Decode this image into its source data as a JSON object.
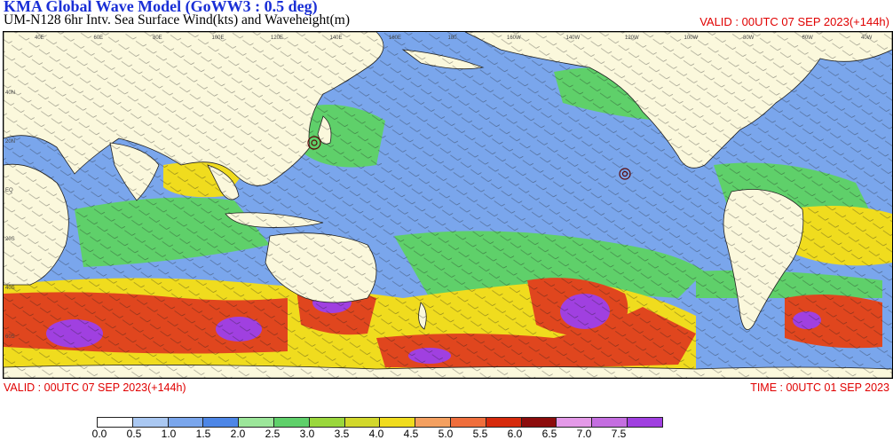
{
  "header": {
    "title": "KMA  Global Wave Model (GoWW3 : 0.5 deg)",
    "subtitle": "UM-N128  6hr Intv. Sea Surface Wind(kts) and Waveheight(m)",
    "valid_top": "VALID : 00UTC 07 SEP 2023(+144h)"
  },
  "footer": {
    "valid_bottom": "VALID : 00UTC 07 SEP 2023(+144h)",
    "time_bottom": "TIME : 00UTC 01 SEP 2023"
  },
  "map": {
    "lon_labels": [
      "40E",
      "60E",
      "80E",
      "100E",
      "120E",
      "140E",
      "160E",
      "180",
      "160W",
      "140W",
      "120W",
      "100W",
      "80W",
      "60W",
      "40W"
    ],
    "lat_labels": [
      "40N",
      "20N",
      "EQ",
      "20S",
      "40S",
      "60S"
    ],
    "colors": {
      "land": "#fbf8dc",
      "ocean_low": "#7aa6ec",
      "ocean_mid": "#5fd06a",
      "ocean_high": "#f0dc1e",
      "storm": "#e0461e",
      "extreme": "#a040e0"
    }
  },
  "colorbar": {
    "labels": [
      "0.0",
      "0.5",
      "1.0",
      "1.5",
      "2.0",
      "2.5",
      "3.0",
      "3.5",
      "4.0",
      "4.5",
      "5.0",
      "5.5",
      "6.0",
      "6.5",
      "7.0",
      "7.5"
    ],
    "colors": [
      "#ffffff",
      "#aac8f2",
      "#7aa6ec",
      "#4d86e6",
      "#9ce69a",
      "#5fd06a",
      "#9ad73c",
      "#d2d82c",
      "#f0dc1e",
      "#f4a060",
      "#ef6e3c",
      "#d62a0c",
      "#8c0c0c",
      "#e49ae8",
      "#c46ee0",
      "#a040e0"
    ]
  }
}
